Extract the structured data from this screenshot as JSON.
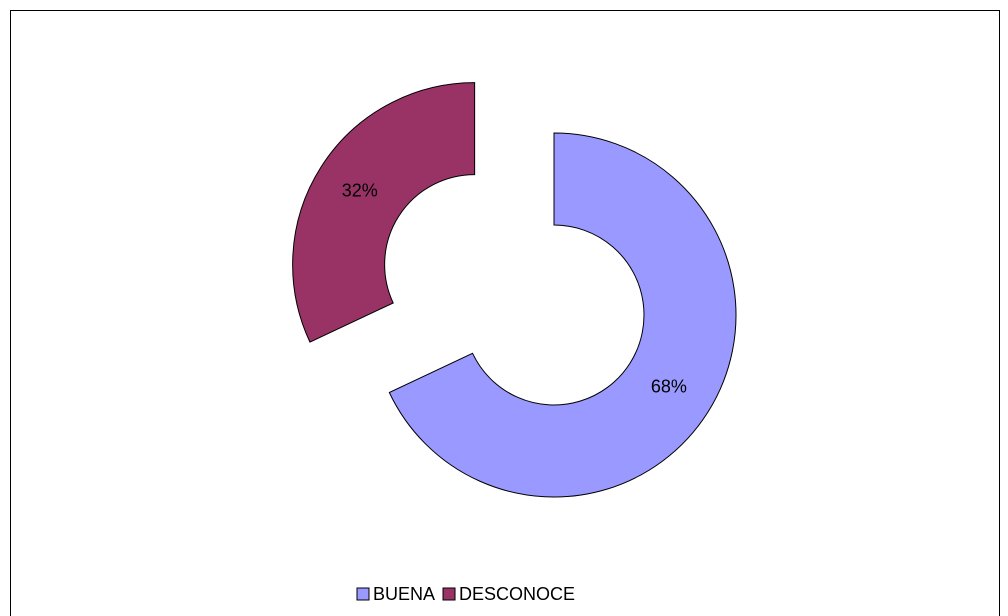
{
  "chart_data": {
    "type": "donut",
    "categories": [
      "BUENA",
      "DESCONOCE"
    ],
    "series": [
      {
        "values": [
          68,
          32
        ],
        "value_labels": [
          "68%",
          "32%"
        ],
        "colors": [
          "#9999ff",
          "#993366"
        ]
      }
    ],
    "legend": "bottom"
  }
}
